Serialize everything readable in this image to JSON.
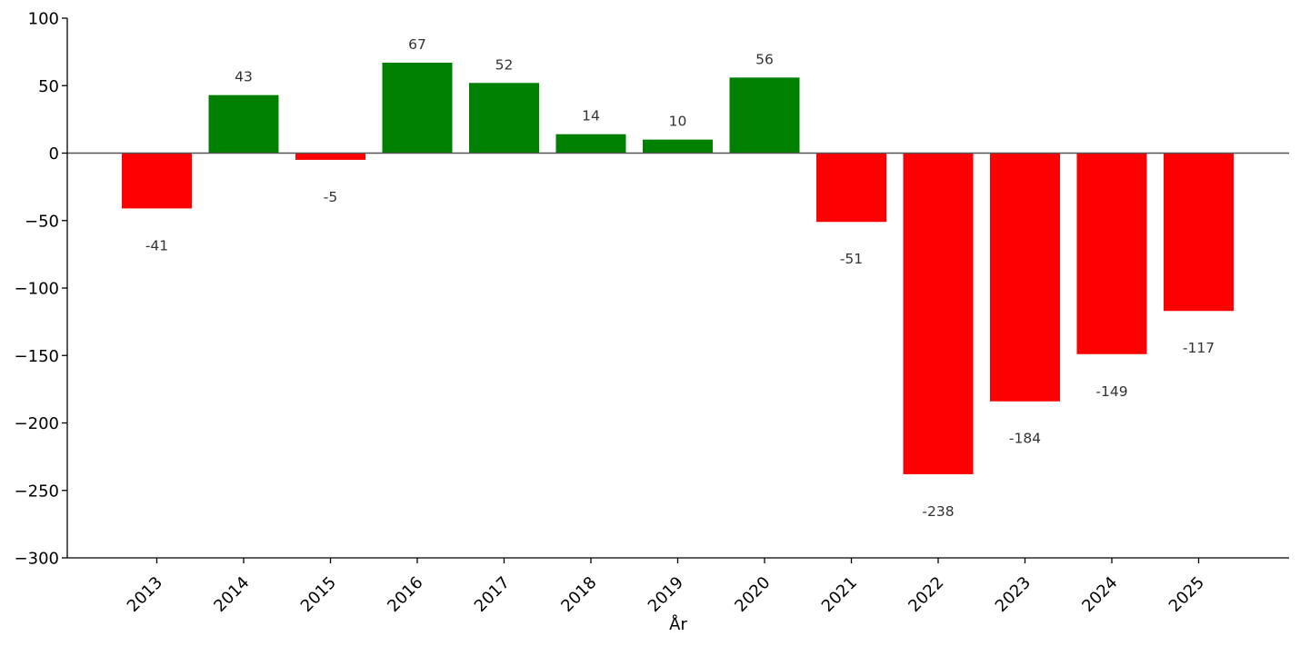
{
  "chart_data": {
    "type": "bar",
    "title": "",
    "xlabel": "År",
    "ylabel": "",
    "categories": [
      "2013",
      "2014",
      "2015",
      "2016",
      "2017",
      "2018",
      "2019",
      "2020",
      "2021",
      "2022",
      "2023",
      "2024",
      "2025"
    ],
    "values": [
      -41,
      43,
      -5,
      67,
      52,
      14,
      10,
      56,
      -51,
      -238,
      -184,
      -149,
      -117
    ],
    "data_labels": [
      "-41",
      "43",
      "-5",
      "67",
      "52",
      "14",
      "10",
      "56",
      "-51",
      "-238",
      "-184",
      "-149",
      "-117"
    ],
    "ylim": [
      -300,
      100
    ],
    "yticks": [
      100,
      50,
      0,
      -50,
      -100,
      -150,
      -200,
      -250,
      -300
    ],
    "ytick_labels": [
      "100",
      "50",
      "0",
      "−50",
      "−100",
      "−150",
      "−200",
      "−250",
      "−300"
    ],
    "grid": false,
    "legend": "none",
    "colors": {
      "positive": "#008000",
      "negative": "#ff0000",
      "zero_line": "#555555",
      "axis": "#000000"
    }
  }
}
